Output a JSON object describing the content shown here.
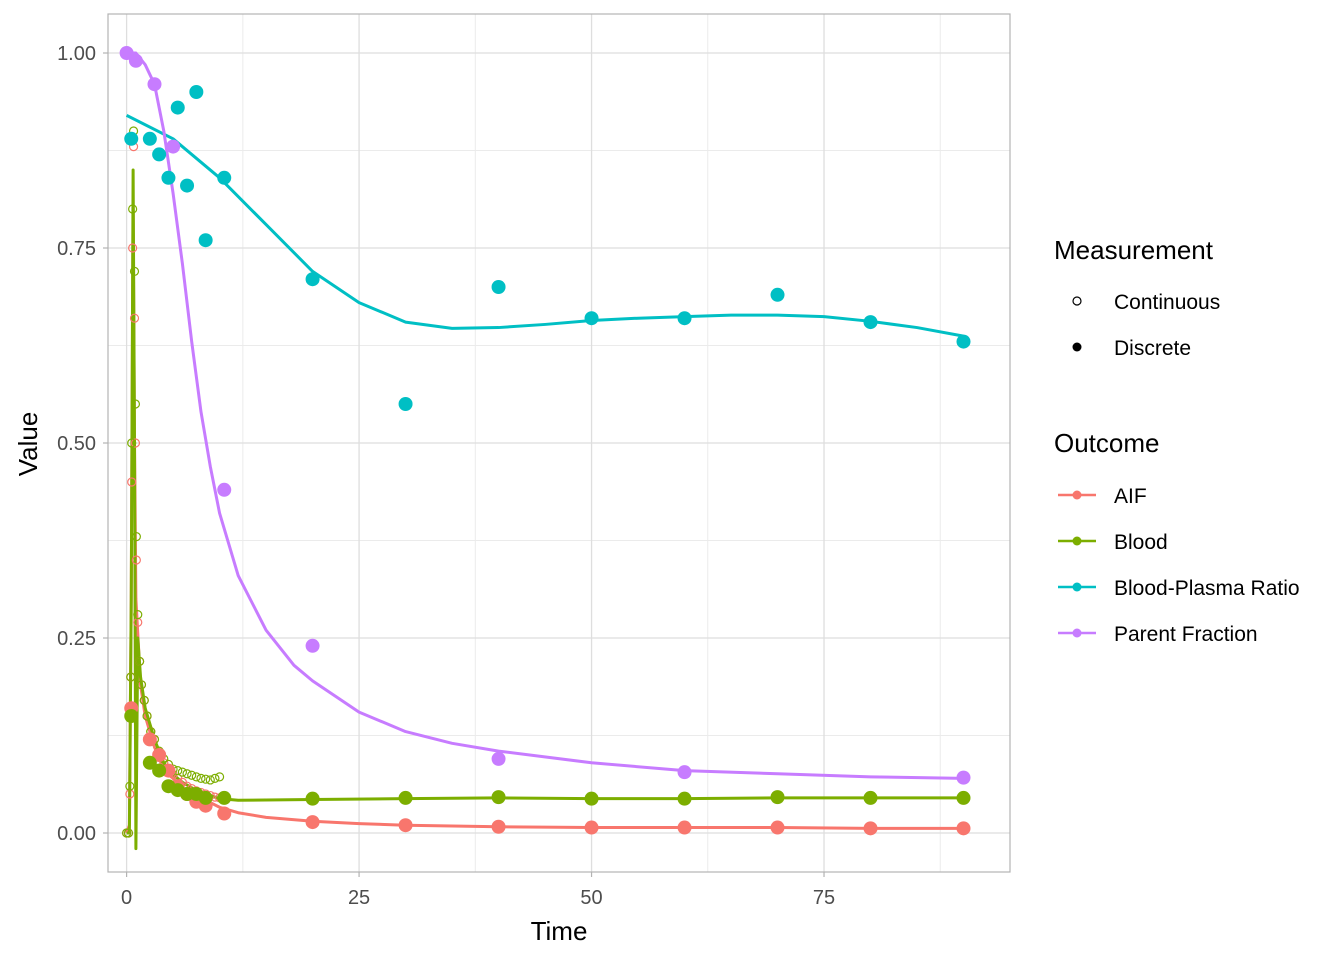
{
  "chart_data": {
    "type": "scatter",
    "xlabel": "Time",
    "ylabel": "Value",
    "xlim": [
      -2,
      95
    ],
    "ylim": [
      -0.05,
      1.05
    ],
    "x_ticks": [
      0,
      25,
      50,
      75
    ],
    "x_tick_labels": [
      "0",
      "25",
      "50",
      "75"
    ],
    "y_ticks": [
      0,
      0.25,
      0.5,
      0.75,
      1.0
    ],
    "y_tick_labels": [
      "0.00",
      "0.25",
      "0.50",
      "0.75",
      "1.00"
    ],
    "grid": true,
    "legend_position": "right",
    "legends": [
      {
        "title": "Measurement",
        "entries": [
          {
            "label": "Continuous",
            "marker": "open-circle"
          },
          {
            "label": "Discrete",
            "marker": "filled-circle"
          }
        ]
      },
      {
        "title": "Outcome",
        "entries": [
          {
            "label": "AIF",
            "color": "#F8766D"
          },
          {
            "label": "Blood",
            "color": "#7CAE00"
          },
          {
            "label": "Blood-Plasma Ratio",
            "color": "#00BFC4"
          },
          {
            "label": "Parent Fraction",
            "color": "#C77CFF"
          }
        ]
      }
    ],
    "series": [
      {
        "name": "AIF",
        "color": "#F8766D",
        "discrete_points": [
          [
            0.5,
            0.16
          ],
          [
            2.5,
            0.12
          ],
          [
            3.5,
            0.1
          ],
          [
            4.5,
            0.08
          ],
          [
            5.5,
            0.06
          ],
          [
            6.5,
            0.05
          ],
          [
            7.5,
            0.04
          ],
          [
            8.5,
            0.035
          ],
          [
            10.5,
            0.025
          ],
          [
            20,
            0.014
          ],
          [
            30,
            0.01
          ],
          [
            40,
            0.008
          ],
          [
            50,
            0.007
          ],
          [
            60,
            0.007
          ],
          [
            70,
            0.007
          ],
          [
            80,
            0.006
          ],
          [
            90,
            0.006
          ]
        ],
        "continuous_points": [
          [
            0,
            0.0
          ],
          [
            0.2,
            0.0
          ],
          [
            0.35,
            0.05
          ],
          [
            0.45,
            0.2
          ],
          [
            0.55,
            0.45
          ],
          [
            0.65,
            0.75
          ],
          [
            0.75,
            0.88
          ],
          [
            0.85,
            0.66
          ],
          [
            0.95,
            0.5
          ],
          [
            1.05,
            0.35
          ],
          [
            1.2,
            0.27
          ],
          [
            1.4,
            0.22
          ],
          [
            1.6,
            0.19
          ],
          [
            1.9,
            0.17
          ],
          [
            2.2,
            0.15
          ],
          [
            2.6,
            0.13
          ],
          [
            3.0,
            0.12
          ],
          [
            3.5,
            0.1
          ],
          [
            4.0,
            0.09
          ],
          [
            4.5,
            0.08
          ],
          [
            5.0,
            0.075
          ],
          [
            5.5,
            0.07
          ],
          [
            6.0,
            0.065
          ],
          [
            6.5,
            0.06
          ],
          [
            7.0,
            0.057
          ],
          [
            7.5,
            0.054
          ],
          [
            8.0,
            0.052
          ],
          [
            8.5,
            0.05
          ],
          [
            9.0,
            0.048
          ],
          [
            9.5,
            0.046
          ],
          [
            10.0,
            0.045
          ]
        ],
        "fit_line": [
          [
            0,
            0.0
          ],
          [
            0.3,
            0.01
          ],
          [
            0.5,
            0.3
          ],
          [
            0.7,
            0.8
          ],
          [
            0.85,
            0.5
          ],
          [
            1.0,
            0.3
          ],
          [
            1.5,
            0.19
          ],
          [
            2,
            0.15
          ],
          [
            3,
            0.11
          ],
          [
            4,
            0.085
          ],
          [
            5,
            0.07
          ],
          [
            6,
            0.058
          ],
          [
            7,
            0.05
          ],
          [
            8,
            0.044
          ],
          [
            9,
            0.039
          ],
          [
            10,
            0.033
          ],
          [
            12,
            0.026
          ],
          [
            15,
            0.02
          ],
          [
            20,
            0.015
          ],
          [
            25,
            0.012
          ],
          [
            30,
            0.01
          ],
          [
            40,
            0.008
          ],
          [
            50,
            0.007
          ],
          [
            60,
            0.007
          ],
          [
            70,
            0.007
          ],
          [
            80,
            0.006
          ],
          [
            90,
            0.006
          ]
        ]
      },
      {
        "name": "Blood",
        "color": "#7CAE00",
        "discrete_points": [
          [
            0.5,
            0.15
          ],
          [
            2.5,
            0.09
          ],
          [
            3.5,
            0.08
          ],
          [
            4.5,
            0.06
          ],
          [
            5.5,
            0.055
          ],
          [
            6.5,
            0.05
          ],
          [
            7.5,
            0.05
          ],
          [
            8.5,
            0.045
          ],
          [
            10.5,
            0.045
          ],
          [
            20,
            0.044
          ],
          [
            30,
            0.045
          ],
          [
            40,
            0.046
          ],
          [
            50,
            0.044
          ],
          [
            60,
            0.044
          ],
          [
            70,
            0.046
          ],
          [
            80,
            0.045
          ],
          [
            90,
            0.045
          ]
        ],
        "continuous_points": [
          [
            0,
            0.0
          ],
          [
            0.2,
            0.0
          ],
          [
            0.35,
            0.06
          ],
          [
            0.45,
            0.2
          ],
          [
            0.55,
            0.5
          ],
          [
            0.65,
            0.8
          ],
          [
            0.75,
            0.9
          ],
          [
            0.85,
            0.72
          ],
          [
            0.95,
            0.55
          ],
          [
            1.05,
            0.38
          ],
          [
            1.2,
            0.28
          ],
          [
            1.4,
            0.22
          ],
          [
            1.6,
            0.19
          ],
          [
            1.9,
            0.17
          ],
          [
            2.2,
            0.15
          ],
          [
            2.6,
            0.13
          ],
          [
            3.0,
            0.12
          ],
          [
            3.5,
            0.105
          ],
          [
            4.0,
            0.095
          ],
          [
            4.5,
            0.088
          ],
          [
            5.0,
            0.082
          ],
          [
            5.5,
            0.08
          ],
          [
            6.0,
            0.078
          ],
          [
            6.5,
            0.076
          ],
          [
            7.0,
            0.074
          ],
          [
            7.5,
            0.072
          ],
          [
            8.0,
            0.07
          ],
          [
            8.5,
            0.069
          ],
          [
            9.0,
            0.068
          ],
          [
            9.5,
            0.07
          ],
          [
            10.0,
            0.072
          ]
        ],
        "fit_line": [
          [
            0,
            0.0
          ],
          [
            0.3,
            0.0
          ],
          [
            0.5,
            0.3
          ],
          [
            0.7,
            0.85
          ],
          [
            0.85,
            0.5
          ],
          [
            1.0,
            -0.02
          ],
          [
            1.2,
            0.25
          ],
          [
            1.5,
            0.2
          ],
          [
            2,
            0.16
          ],
          [
            3,
            0.12
          ],
          [
            4,
            0.09
          ],
          [
            5,
            0.075
          ],
          [
            6,
            0.065
          ],
          [
            7,
            0.058
          ],
          [
            8,
            0.052
          ],
          [
            9,
            0.048
          ],
          [
            10,
            0.044
          ],
          [
            12,
            0.042
          ],
          [
            20,
            0.043
          ],
          [
            30,
            0.044
          ],
          [
            40,
            0.045
          ],
          [
            50,
            0.044
          ],
          [
            60,
            0.044
          ],
          [
            70,
            0.045
          ],
          [
            80,
            0.045
          ],
          [
            90,
            0.045
          ]
        ]
      },
      {
        "name": "Blood-Plasma Ratio",
        "color": "#00BFC4",
        "discrete_points": [
          [
            0.5,
            0.89
          ],
          [
            2.5,
            0.89
          ],
          [
            3.5,
            0.87
          ],
          [
            4.5,
            0.84
          ],
          [
            5.5,
            0.93
          ],
          [
            6.5,
            0.83
          ],
          [
            7.5,
            0.95
          ],
          [
            8.5,
            0.76
          ],
          [
            10.5,
            0.84
          ],
          [
            20,
            0.71
          ],
          [
            30,
            0.55
          ],
          [
            40,
            0.7
          ],
          [
            50,
            0.66
          ],
          [
            60,
            0.66
          ],
          [
            70,
            0.69
          ],
          [
            80,
            0.655
          ],
          [
            90,
            0.63
          ]
        ],
        "continuous_points": [],
        "fit_line": [
          [
            0,
            0.92
          ],
          [
            5,
            0.89
          ],
          [
            10,
            0.84
          ],
          [
            15,
            0.78
          ],
          [
            20,
            0.72
          ],
          [
            25,
            0.68
          ],
          [
            30,
            0.655
          ],
          [
            35,
            0.647
          ],
          [
            40,
            0.648
          ],
          [
            45,
            0.652
          ],
          [
            50,
            0.657
          ],
          [
            55,
            0.66
          ],
          [
            60,
            0.662
          ],
          [
            65,
            0.664
          ],
          [
            70,
            0.664
          ],
          [
            75,
            0.662
          ],
          [
            80,
            0.656
          ],
          [
            85,
            0.648
          ],
          [
            90,
            0.637
          ]
        ]
      },
      {
        "name": "Parent Fraction",
        "color": "#C77CFF",
        "discrete_points": [
          [
            0,
            1.0
          ],
          [
            1,
            0.99
          ],
          [
            3,
            0.96
          ],
          [
            5,
            0.88
          ],
          [
            10.5,
            0.44
          ],
          [
            20,
            0.24
          ],
          [
            40,
            0.095
          ],
          [
            60,
            0.078
          ],
          [
            90,
            0.071
          ]
        ],
        "continuous_points": [],
        "fit_line": [
          [
            0,
            1.0
          ],
          [
            1,
            1.0
          ],
          [
            2,
            0.985
          ],
          [
            3,
            0.96
          ],
          [
            4,
            0.9
          ],
          [
            5,
            0.82
          ],
          [
            6,
            0.73
          ],
          [
            7,
            0.63
          ],
          [
            8,
            0.54
          ],
          [
            9,
            0.47
          ],
          [
            10,
            0.41
          ],
          [
            12,
            0.33
          ],
          [
            15,
            0.26
          ],
          [
            18,
            0.215
          ],
          [
            20,
            0.195
          ],
          [
            25,
            0.155
          ],
          [
            30,
            0.13
          ],
          [
            35,
            0.115
          ],
          [
            40,
            0.105
          ],
          [
            50,
            0.09
          ],
          [
            60,
            0.08
          ],
          [
            70,
            0.076
          ],
          [
            80,
            0.072
          ],
          [
            90,
            0.07
          ]
        ]
      }
    ]
  }
}
